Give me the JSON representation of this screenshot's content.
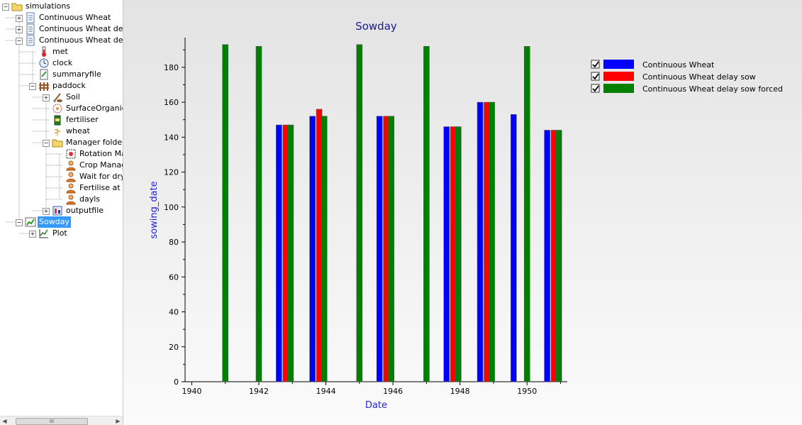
{
  "tree": {
    "nodes": [
      {
        "label": "simulations",
        "icon": "folder-icon",
        "expander": "minus"
      },
      {
        "label": "Continuous Wheat",
        "icon": "simulation-icon",
        "expander": "plus"
      },
      {
        "label": "Continuous Wheat delay so",
        "icon": "simulation-icon",
        "expander": "plus"
      },
      {
        "label": "Continuous Wheat delay so",
        "icon": "simulation-icon",
        "expander": "minus"
      },
      {
        "label": "met",
        "icon": "thermometer-icon",
        "expander": ""
      },
      {
        "label": "clock",
        "icon": "clock-icon",
        "expander": ""
      },
      {
        "label": "summaryfile",
        "icon": "summary-file-icon",
        "expander": ""
      },
      {
        "label": "paddock",
        "icon": "paddock-fence-icon",
        "expander": "minus"
      },
      {
        "label": "Soil",
        "icon": "soil-shovel-icon",
        "expander": "plus"
      },
      {
        "label": "SurfaceOrganicMa",
        "icon": "surface-organic-matter-icon",
        "expander": ""
      },
      {
        "label": "fertiliser",
        "icon": "fertiliser-bag-icon",
        "expander": ""
      },
      {
        "label": "wheat",
        "icon": "wheat-icon",
        "expander": ""
      },
      {
        "label": "Manager folder",
        "icon": "folder-icon",
        "expander": "minus"
      },
      {
        "label": "Rotation Mana",
        "icon": "rotation-manager-icon",
        "expander": ""
      },
      {
        "label": "Crop Managem",
        "icon": "manager-person-icon",
        "expander": ""
      },
      {
        "label": "Wait for dry su",
        "icon": "manager-person-icon",
        "expander": ""
      },
      {
        "label": "Fertilise at Sow",
        "icon": "manager-person-icon",
        "expander": ""
      },
      {
        "label": "dayls",
        "icon": "manager-person-icon",
        "expander": ""
      },
      {
        "label": "outputfile",
        "icon": "output-file-icon",
        "expander": "plus"
      },
      {
        "label": "Sowday",
        "icon": "graph-icon",
        "expander": "minus",
        "selected": true
      },
      {
        "label": "Plot",
        "icon": "plot-icon",
        "expander": "plus"
      }
    ],
    "scrollbar_thumb": "III"
  },
  "colors": {
    "continuous_wheat": "#0000ff",
    "delay_sow": "#ff0000",
    "delay_sow_forced": "#008000",
    "title": "#1a1a8c",
    "axis_title": "#2323d6"
  },
  "chart_data": {
    "type": "bar",
    "title": "Sowday",
    "xlabel": "Date",
    "ylabel": "sowing_date",
    "xlim": [
      1939.8,
      1951.2
    ],
    "ylim": [
      0,
      197
    ],
    "x_ticks": [
      1940,
      1942,
      1944,
      1946,
      1948,
      1950
    ],
    "y_ticks": [
      0,
      20,
      40,
      60,
      80,
      100,
      120,
      140,
      160,
      180
    ],
    "grid": false,
    "legend_position": "right",
    "series": [
      {
        "name": "Continuous Wheat",
        "color": "#0000ff",
        "checked": true,
        "points": [
          [
            1942.6,
            147
          ],
          [
            1943.6,
            152
          ],
          [
            1945.6,
            152
          ],
          [
            1947.6,
            146
          ],
          [
            1948.6,
            160
          ],
          [
            1949.6,
            153
          ],
          [
            1950.6,
            144
          ]
        ]
      },
      {
        "name": "Continuous Wheat delay sow",
        "color": "#ff0000",
        "checked": true,
        "points": [
          [
            1942.8,
            147
          ],
          [
            1943.8,
            156
          ],
          [
            1945.8,
            152
          ],
          [
            1947.8,
            146
          ],
          [
            1948.8,
            160
          ],
          [
            1950.8,
            144
          ]
        ]
      },
      {
        "name": "Continuous Wheat delay sow forced",
        "color": "#008000",
        "checked": true,
        "points": [
          [
            1941.0,
            193
          ],
          [
            1942.0,
            192
          ],
          [
            1942.95,
            147
          ],
          [
            1943.95,
            152
          ],
          [
            1945.0,
            193
          ],
          [
            1945.95,
            152
          ],
          [
            1947.0,
            192
          ],
          [
            1947.95,
            146
          ],
          [
            1948.95,
            160
          ],
          [
            1950.0,
            192
          ],
          [
            1950.95,
            144
          ]
        ]
      }
    ]
  }
}
